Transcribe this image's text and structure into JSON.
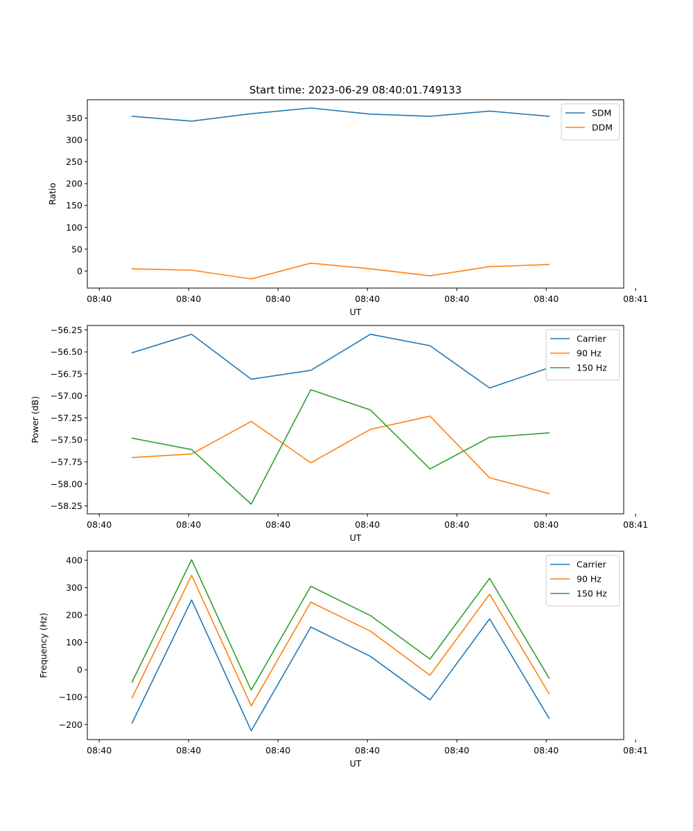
{
  "colors": {
    "blue": "#1f77b4",
    "orange": "#ff7f0e",
    "green": "#2ca02c"
  },
  "chart_data": [
    {
      "type": "line",
      "title": "Start time: 2023-06-29 08:40:01.749133",
      "xlabel": "UT",
      "ylabel": "Ratio",
      "x": [
        1,
        2,
        3,
        4,
        5,
        6,
        7,
        8
      ],
      "xlim": [
        0.25,
        9.25
      ],
      "x_ticks": [
        0.45,
        1.95,
        3.45,
        4.95,
        6.45,
        7.95,
        9.45
      ],
      "x_tick_labels": [
        "08:40",
        "08:40",
        "08:40",
        "08:40",
        "08:40",
        "08:40",
        "08:41"
      ],
      "ylim": [
        -39,
        392
      ],
      "y_ticks": [
        0,
        50,
        100,
        150,
        200,
        250,
        300,
        350
      ],
      "y_tick_labels": [
        "0",
        "50",
        "100",
        "150",
        "200",
        "250",
        "300",
        "350"
      ],
      "legend_position": "upper right",
      "series": [
        {
          "name": "SDM",
          "color": "#1f77b4",
          "values": [
            354,
            343,
            360,
            373,
            359,
            354,
            366,
            354
          ]
        },
        {
          "name": "DDM",
          "color": "#ff7f0e",
          "values": [
            5,
            2,
            -18,
            18,
            5,
            -11,
            10,
            15
          ]
        }
      ]
    },
    {
      "type": "line",
      "title": "",
      "xlabel": "UT",
      "ylabel": "Power (dB)",
      "x": [
        1,
        2,
        3,
        4,
        5,
        6,
        7,
        8
      ],
      "xlim": [
        0.25,
        9.25
      ],
      "x_ticks": [
        0.45,
        1.95,
        3.45,
        4.95,
        6.45,
        7.95,
        9.45
      ],
      "x_tick_labels": [
        "08:40",
        "08:40",
        "08:40",
        "08:40",
        "08:40",
        "08:40",
        "08:41"
      ],
      "ylim": [
        -58.34,
        -56.2
      ],
      "y_ticks": [
        -58.25,
        -58.0,
        -57.75,
        -57.5,
        -57.25,
        -57.0,
        -56.75,
        -56.5,
        -56.25
      ],
      "y_tick_labels": [
        "−58.25",
        "−58.00",
        "−57.75",
        "−57.50",
        "−57.25",
        "−57.00",
        "−56.75",
        "−56.50",
        "−56.25"
      ],
      "legend_position": "upper right",
      "series": [
        {
          "name": "Carrier",
          "color": "#1f77b4",
          "values": [
            -56.51,
            -56.3,
            -56.81,
            -56.71,
            -56.3,
            -56.43,
            -56.91,
            -56.68
          ]
        },
        {
          "name": "90 Hz",
          "color": "#ff7f0e",
          "values": [
            -57.7,
            -57.66,
            -57.29,
            -57.76,
            -57.38,
            -57.23,
            -57.93,
            -58.11
          ]
        },
        {
          "name": "150 Hz",
          "color": "#2ca02c",
          "values": [
            -57.48,
            -57.61,
            -58.23,
            -56.93,
            -57.16,
            -57.83,
            -57.47,
            -57.42
          ]
        }
      ]
    },
    {
      "type": "line",
      "title": "",
      "xlabel": "UT",
      "ylabel": "Frequency (Hz)",
      "x": [
        1,
        2,
        3,
        4,
        5,
        6,
        7,
        8
      ],
      "xlim": [
        0.25,
        9.25
      ],
      "x_ticks": [
        0.45,
        1.95,
        3.45,
        4.95,
        6.45,
        7.95,
        9.45
      ],
      "x_tick_labels": [
        "08:40",
        "08:40",
        "08:40",
        "08:40",
        "08:40",
        "08:40",
        "08:41"
      ],
      "ylim": [
        -255,
        433
      ],
      "y_ticks": [
        -200,
        -100,
        0,
        100,
        200,
        300,
        400
      ],
      "y_tick_labels": [
        "−200",
        "−100",
        "0",
        "100",
        "200",
        "300",
        "400"
      ],
      "legend_position": "upper right",
      "series": [
        {
          "name": "Carrier",
          "color": "#1f77b4",
          "values": [
            -195,
            255,
            -223,
            156,
            49,
            -110,
            186,
            -178
          ]
        },
        {
          "name": "90 Hz",
          "color": "#ff7f0e",
          "values": [
            -103,
            345,
            -132,
            247,
            141,
            -20,
            276,
            -88
          ]
        },
        {
          "name": "150 Hz",
          "color": "#2ca02c",
          "values": [
            -45,
            402,
            -74,
            305,
            198,
            39,
            334,
            -31
          ]
        }
      ]
    }
  ]
}
